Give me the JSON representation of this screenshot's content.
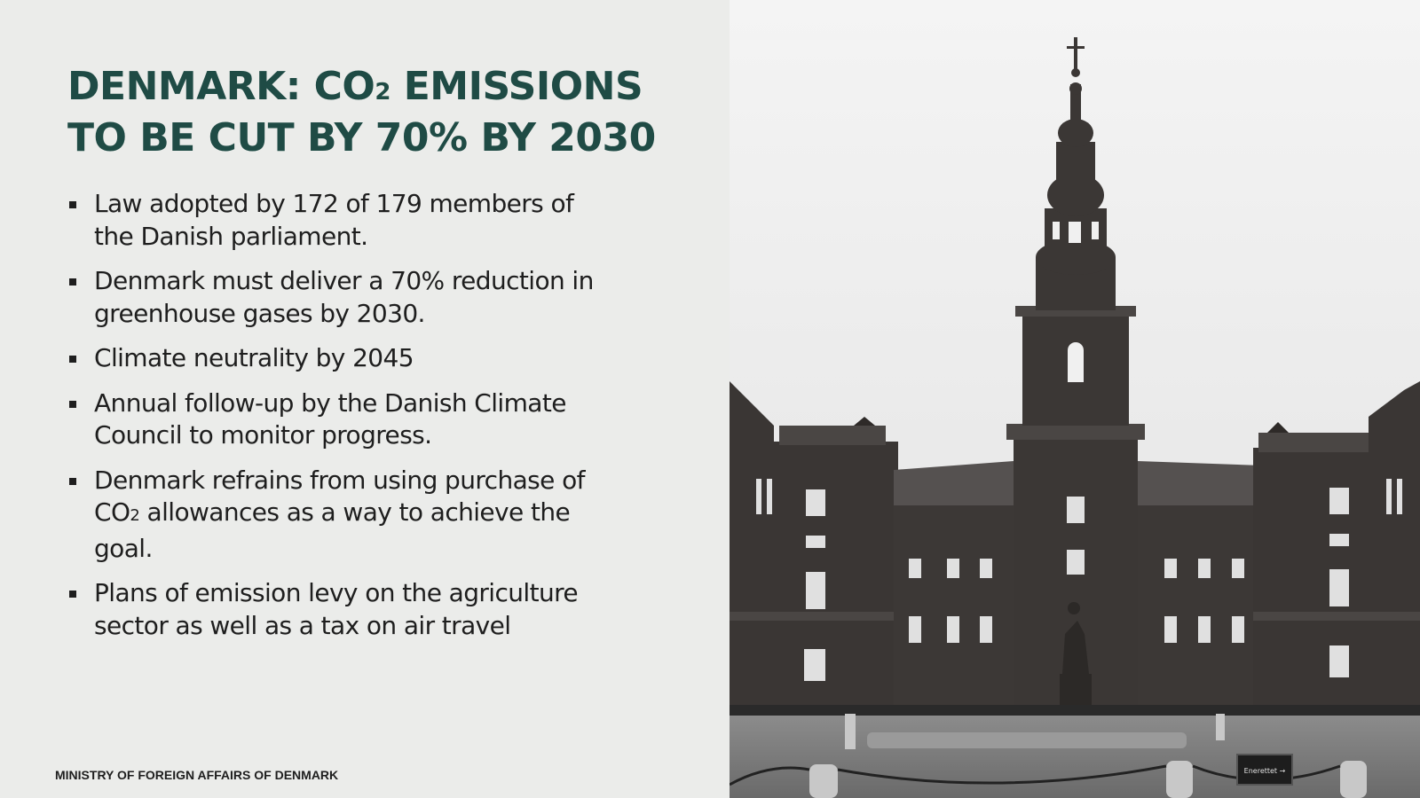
{
  "slide": {
    "title_part1": "DENMARK: CO",
    "title_sub": "2",
    "title_part2": " EMISSIONS TO BE CUT BY 70% BY 2030",
    "bullets": [
      {
        "text": "Law adopted by 172 of 179 members of the Danish parliament."
      },
      {
        "text": "Denmark must deliver a 70% reduction in greenhouse gases by 2030."
      },
      {
        "text": "Climate neutrality by 2045"
      },
      {
        "text": "Annual follow-up by the Danish Climate Council to monitor progress."
      },
      {
        "text_a": "Denmark refrains from using purchase of CO",
        "text_sub": "2",
        "text_b": " allowances as a way to achieve the goal."
      },
      {
        "text": "Plans of emission levy on the agriculture sector as well as a tax on air travel"
      }
    ],
    "footer": "MINISTRY OF FOREIGN AFFAIRS OF DENMARK"
  },
  "photo": {
    "sign_text": "Enerettet →"
  },
  "colors": {
    "title": "#1f4b45",
    "background": "#ebecea",
    "text": "#1e1e1e"
  }
}
